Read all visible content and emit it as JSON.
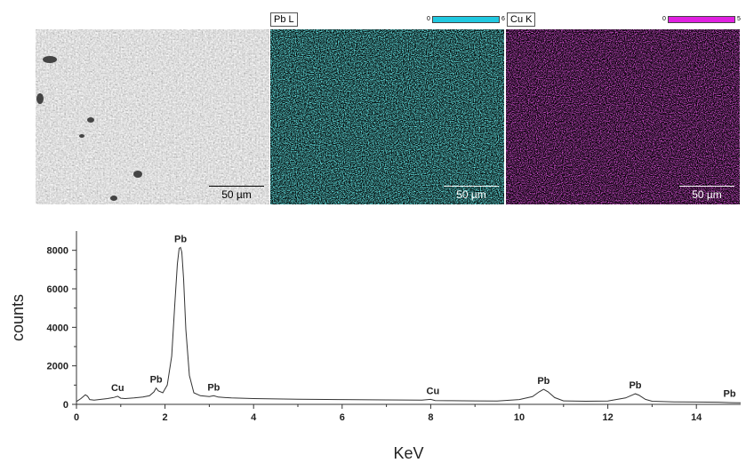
{
  "figure": {
    "panels": [
      {
        "name": "sem-image",
        "label": "",
        "scale_bar": "50 µm"
      },
      {
        "name": "pb-map",
        "label": "Pb L",
        "scale_bar": "50 µm",
        "color": "#20c8c8",
        "legend_min": "0",
        "legend_max": "6"
      },
      {
        "name": "cu-map",
        "label": "Cu K",
        "scale_bar": "50 µm",
        "color": "#e020e0",
        "legend_min": "0",
        "legend_max": "5"
      }
    ]
  },
  "chart_data": {
    "type": "line",
    "xlabel": "KeV",
    "ylabel": "counts",
    "xlim": [
      0,
      15
    ],
    "ylim": [
      0,
      9000
    ],
    "x_ticks": [
      0,
      2,
      4,
      6,
      8,
      10,
      12,
      14
    ],
    "y_ticks": [
      0,
      2000,
      4000,
      6000,
      8000
    ],
    "series": [
      {
        "x": [
          0,
          0.1,
          0.2,
          0.25,
          0.3,
          0.4,
          0.55,
          0.7,
          0.85,
          0.93,
          1.0,
          1.1,
          1.3,
          1.5,
          1.65,
          1.75,
          1.8,
          1.85,
          1.95,
          2.05,
          2.15,
          2.22,
          2.28,
          2.32,
          2.35,
          2.38,
          2.42,
          2.47,
          2.55,
          2.65,
          2.8,
          3.0,
          3.1,
          3.2,
          3.5,
          4.0,
          5.0,
          6.0,
          7.0,
          7.8,
          8.0,
          8.1,
          8.4,
          9.0,
          9.5,
          10.0,
          10.3,
          10.45,
          10.55,
          10.65,
          10.8,
          11.0,
          11.5,
          12.0,
          12.4,
          12.55,
          12.62,
          12.7,
          12.85,
          13.0,
          13.5,
          14.0,
          14.5,
          14.8,
          15.0
        ],
        "y": [
          150,
          300,
          500,
          420,
          250,
          220,
          260,
          300,
          360,
          420,
          320,
          300,
          330,
          380,
          450,
          650,
          850,
          700,
          600,
          1000,
          2500,
          5200,
          7300,
          8100,
          8150,
          7900,
          6500,
          3900,
          1500,
          600,
          450,
          400,
          450,
          380,
          330,
          300,
          270,
          250,
          230,
          220,
          260,
          200,
          190,
          180,
          170,
          250,
          400,
          650,
          780,
          650,
          350,
          180,
          160,
          170,
          330,
          480,
          550,
          480,
          260,
          160,
          130,
          120,
          110,
          90,
          80
        ]
      }
    ],
    "annotations": [
      {
        "text": "Cu",
        "x": 0.93,
        "y": 420
      },
      {
        "text": "Pb",
        "x": 1.8,
        "y": 850
      },
      {
        "text": "Pb",
        "x": 2.35,
        "y": 8150
      },
      {
        "text": "Pb",
        "x": 3.1,
        "y": 450
      },
      {
        "text": "Cu",
        "x": 8.05,
        "y": 260
      },
      {
        "text": "Pb",
        "x": 10.55,
        "y": 780
      },
      {
        "text": "Pb",
        "x": 12.62,
        "y": 550
      },
      {
        "text": "Pb",
        "x": 14.75,
        "y": 110
      }
    ]
  }
}
